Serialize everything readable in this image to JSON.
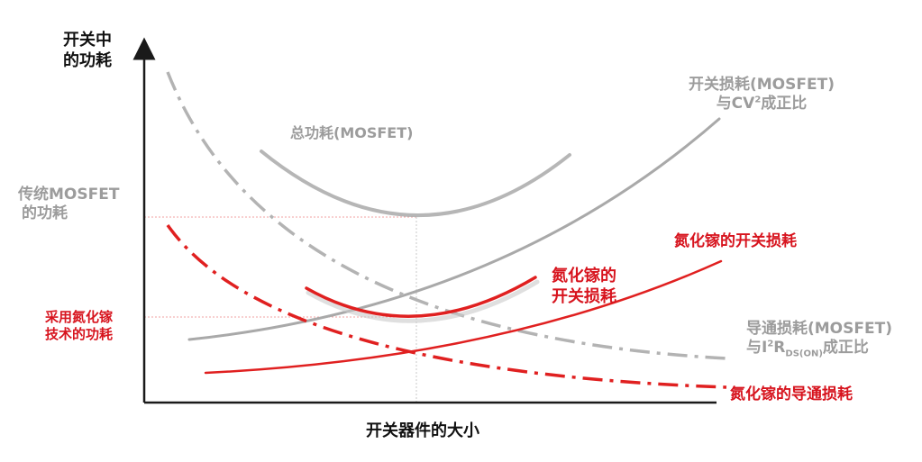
{
  "y_axis_label": {
    "line1": "开关中",
    "line2": "的功耗"
  },
  "x_axis_label": "开关器件的大小",
  "label_traditional": {
    "line1": "传统MOSFET",
    "line2": "的功耗"
  },
  "label_gan_tech": {
    "line1": "采用氮化镓",
    "line2": "技术的功耗"
  },
  "label_total_mosfet": "总功耗(MOSFET)",
  "label_switch_mosfet": {
    "line1": "开关损耗(MOSFET)",
    "line2_prefix": "与CV",
    "line2_sup": "2",
    "line2_suffix": "成正比"
  },
  "label_gan_switch_right": "氮化镓的开关损耗",
  "label_gan_total": {
    "line1": "氮化镓的",
    "line2": "开关损耗"
  },
  "label_conduction_mosfet": {
    "line1": "导通损耗(MOSFET)",
    "line2_prefix": "与I",
    "line2_sup": "2",
    "line2_mid": "R",
    "line2_sub": "DS(ON)",
    "line2_suffix": "成正比"
  },
  "label_gan_conduction": "氮化镓的导通损耗",
  "colors": {
    "mosfet_gray": "#a9a9a9",
    "gan_red": "#e02020",
    "axis": "#1a1a1a",
    "guide_red": "#f08a8a"
  }
}
